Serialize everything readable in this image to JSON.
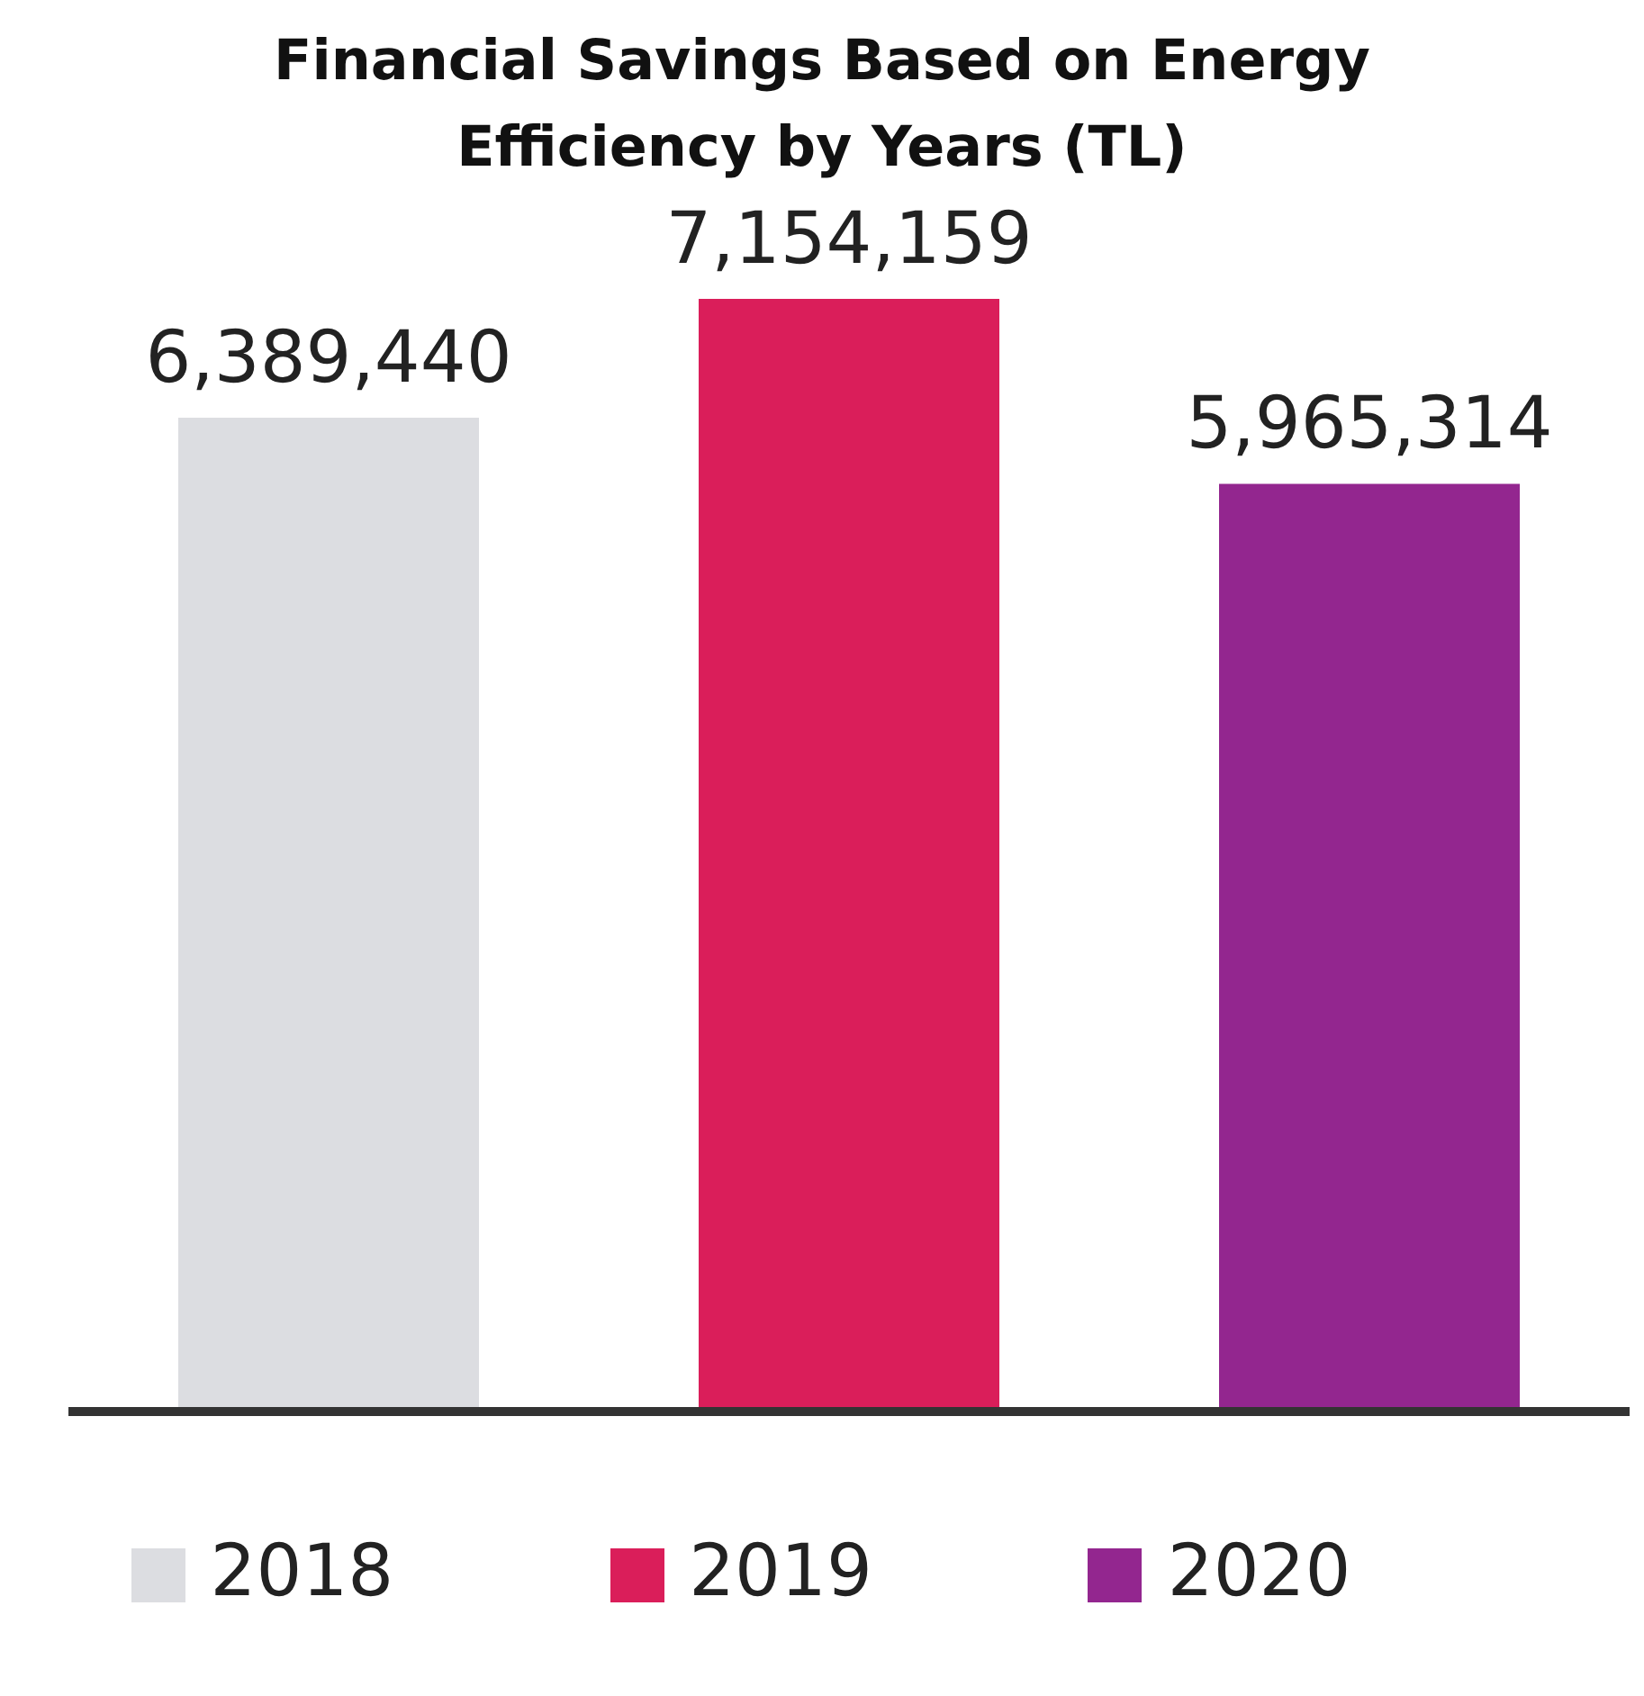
{
  "chart_data": {
    "type": "bar",
    "title": "Financial Savings Based on Energy Efficiency by Years (TL)",
    "categories": [
      null,
      null,
      null
    ],
    "stacked": true,
    "series": [
      {
        "name": "2018",
        "color": "#dcdde1",
        "values": [
          6389440,
          null,
          null
        ],
        "value_labels": [
          "6,389,440",
          null,
          null
        ]
      },
      {
        "name": "2019",
        "color": "#da1e5a",
        "values": [
          null,
          7154159,
          null
        ],
        "value_labels": [
          null,
          "7,154,159",
          null
        ]
      },
      {
        "name": "2020",
        "color": "#93268f",
        "values": [
          null,
          null,
          5965314
        ],
        "value_labels": [
          null,
          null,
          "5,965,314"
        ]
      }
    ],
    "tick_labels": false,
    "legend": "bottom"
  }
}
